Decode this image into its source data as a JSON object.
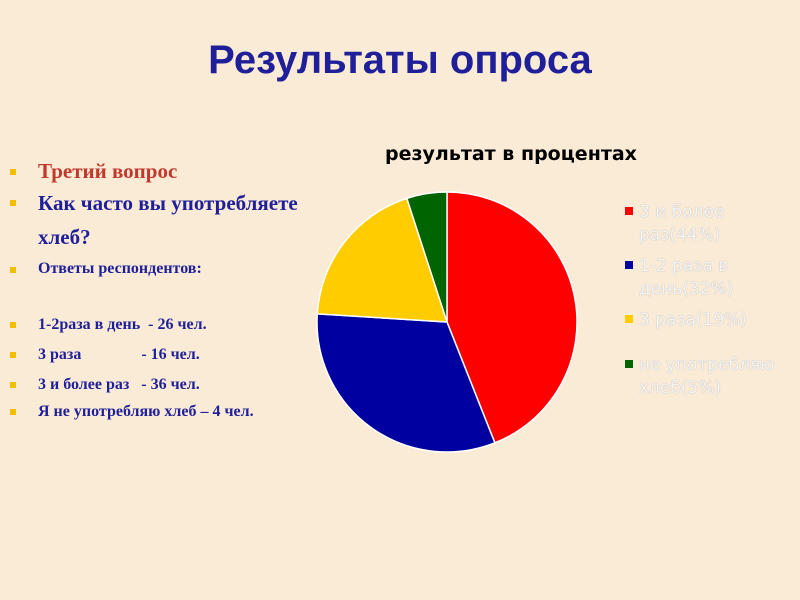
{
  "slide": {
    "title": "Результаты опроса"
  },
  "bullets": {
    "question_number": "Третий вопрос",
    "question_text": "Как часто вы употребляете хлеб?",
    "answers_heading": "Ответы респондентов:",
    "answers": [
      "1-2раза в день  - 26 чел.",
      "3 раза               - 16 чел.",
      "3 и более раз   - 36 чел.",
      "Я не употребляю хлеб – 4 чел."
    ]
  },
  "colors": {
    "marker": "#f0c000",
    "title": "#1f1f99",
    "question": "#c0392b"
  },
  "chart_data": {
    "type": "pie",
    "title": "результат в процентах",
    "legend_position": "right",
    "slices": [
      {
        "label": "3 и более раз(44%)",
        "value": 44,
        "color": "#ff0000"
      },
      {
        "label": "1-2 раза в день(32%)",
        "value": 32,
        "color": "#0000a0"
      },
      {
        "label": "3 раза(19%)",
        "value": 19,
        "color": "#ffcc00"
      },
      {
        "label": "не употребляю хлеб(5%)",
        "value": 5,
        "color": "#006400"
      }
    ]
  }
}
